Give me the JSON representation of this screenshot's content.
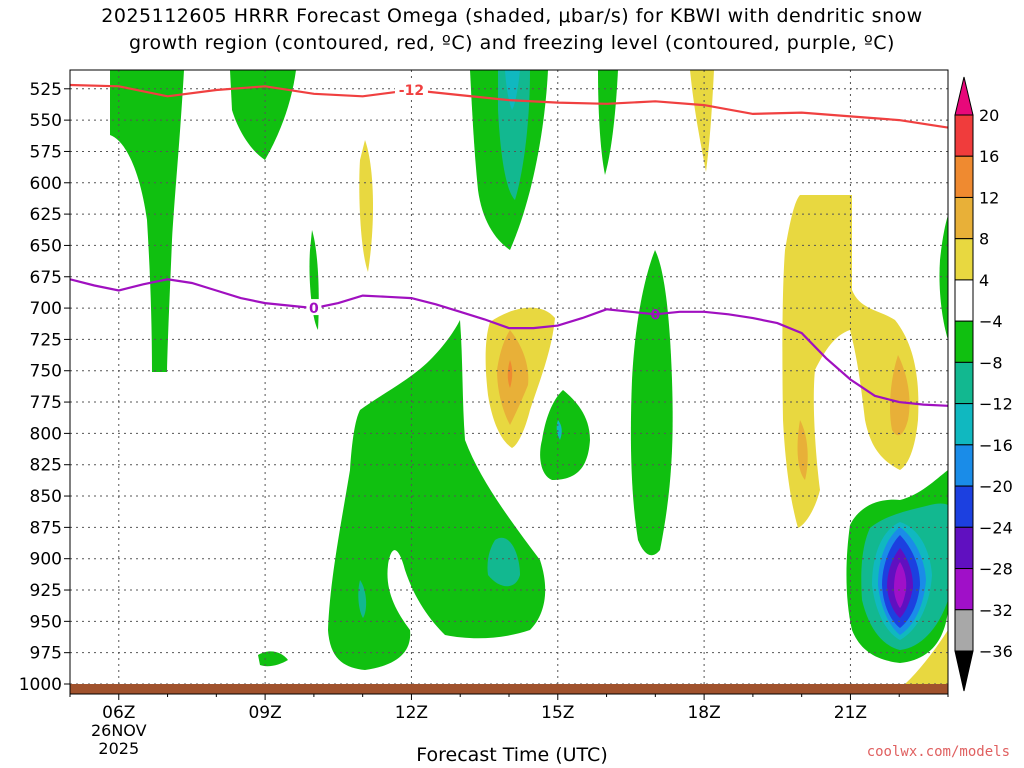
{
  "chart_data": {
    "type": "heatmap",
    "title_line1": "2025112605 HRRR Forecast Omega (shaded, μbar/s) for KBWI with dendritic snow",
    "title_line2": "growth region (contoured, red, ºC) and freezing level (contoured, purple, ºC)",
    "xlabel": "Forecast Time (UTC)",
    "x_ticks": [
      {
        "hour": 6,
        "label": "06Z"
      },
      {
        "hour": 9,
        "label": "09Z"
      },
      {
        "hour": 12,
        "label": "12Z"
      },
      {
        "hour": 15,
        "label": "15Z"
      },
      {
        "hour": 18,
        "label": "18Z"
      },
      {
        "hour": 21,
        "label": "21Z"
      }
    ],
    "date_label_day": "26NOV",
    "date_label_year": "2025",
    "xlim": [
      5,
      23
    ],
    "ylim_hpa": [
      1000,
      510
    ],
    "y_ticks": [
      525,
      550,
      575,
      600,
      625,
      650,
      675,
      700,
      725,
      750,
      775,
      800,
      825,
      850,
      875,
      900,
      925,
      950,
      975,
      1000
    ],
    "colorbar_labels": [
      "20",
      "16",
      "12",
      "8",
      "4",
      "−4",
      "−8",
      "−12",
      "−16",
      "−20",
      "−24",
      "−28",
      "−32",
      "−36"
    ],
    "colorbar_colors": [
      "#e8087a",
      "#f03c3c",
      "#ef8a30",
      "#e8b038",
      "#e8d840",
      "#ffffff",
      "#10c010",
      "#12b890",
      "#10b8c0",
      "#1a8ce8",
      "#1c40e0",
      "#6010c0",
      "#a010c8",
      "#a8a8a8",
      "#000000"
    ],
    "dgz_contour": {
      "label": "-12",
      "color": "#f04040",
      "points": [
        [
          5,
          522
        ],
        [
          6,
          523
        ],
        [
          7,
          531
        ],
        [
          8,
          526
        ],
        [
          9,
          523
        ],
        [
          10,
          529
        ],
        [
          11,
          531
        ],
        [
          12,
          526
        ],
        [
          13,
          530
        ],
        [
          14,
          534
        ],
        [
          15,
          536
        ],
        [
          16,
          537
        ],
        [
          17,
          535
        ],
        [
          18,
          538
        ],
        [
          19,
          545
        ],
        [
          20,
          544
        ],
        [
          21,
          547
        ],
        [
          22,
          550
        ],
        [
          23,
          556
        ]
      ]
    },
    "freezing_level": {
      "label": "0",
      "color": "#a010c0",
      "points": [
        [
          5,
          677
        ],
        [
          5.5,
          682
        ],
        [
          6,
          686
        ],
        [
          6.5,
          681
        ],
        [
          7,
          677
        ],
        [
          7.5,
          680
        ],
        [
          8,
          686
        ],
        [
          8.5,
          692
        ],
        [
          9,
          696
        ],
        [
          9.5,
          698
        ],
        [
          10,
          700
        ],
        [
          10.5,
          696
        ],
        [
          11,
          690
        ],
        [
          11.5,
          691
        ],
        [
          12,
          692
        ],
        [
          12.5,
          697
        ],
        [
          13,
          703
        ],
        [
          13.5,
          709
        ],
        [
          14,
          716
        ],
        [
          14.5,
          716
        ],
        [
          15,
          714
        ],
        [
          15.5,
          708
        ],
        [
          16,
          701
        ],
        [
          16.5,
          703
        ],
        [
          17,
          705
        ],
        [
          17.5,
          703
        ],
        [
          18,
          703
        ],
        [
          18.5,
          705
        ],
        [
          19,
          708
        ],
        [
          19.5,
          712
        ],
        [
          20,
          720
        ],
        [
          20.5,
          740
        ],
        [
          21,
          757
        ],
        [
          21.5,
          770
        ],
        [
          22,
          775
        ],
        [
          22.5,
          777
        ],
        [
          23,
          778
        ]
      ]
    },
    "ground_color": "#a0522d",
    "watermark": "coolwx.com/models"
  }
}
